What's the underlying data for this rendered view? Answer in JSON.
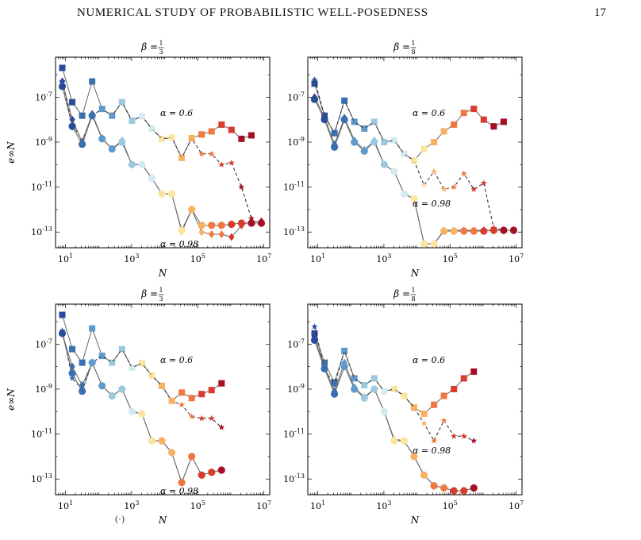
{
  "page": {
    "running_title": "NUMERICAL STUDY OF PROBABILISTIC WELL-POSEDNESS",
    "page_number": "17",
    "caption_fragment": "(·)"
  },
  "colors": {
    "alpha_gradient": [
      "#2b4b9b",
      "#3a6fb0",
      "#5e9bcc",
      "#9cc9e0",
      "#d4eaf0",
      "#fbe3a0",
      "#f8b160",
      "#ef7841",
      "#d73c2c",
      "#a50f26"
    ],
    "line_solid": "#666666",
    "line_dashed": "#222222"
  },
  "chart_data": [
    {
      "type": "line",
      "title": "β = 1/3",
      "title_main": "β = ",
      "title_num": "1",
      "title_den": "3",
      "xlabel": "N",
      "ylabel": "e∞N",
      "x_scale": "log",
      "y_scale": "log",
      "xlim": [
        5,
        15000000
      ],
      "ylim": [
        2e-14,
        6e-06
      ],
      "xticks": [
        "10^1",
        "10^3",
        "10^5",
        "10^7"
      ],
      "yticks": [
        "10^-7",
        "10^-9",
        "10^-11",
        "10^-13"
      ],
      "annotations": [
        "α = 0.6",
        "α = 0.98"
      ],
      "series": [
        {
          "style": "solid",
          "marker": "square",
          "x": [
            8,
            16,
            32,
            64,
            128,
            256,
            512,
            1024,
            2048,
            4096,
            8192,
            16384,
            32768,
            65536,
            131072,
            262144,
            524288,
            1048576,
            2097152,
            4194304
          ],
          "y": [
            2e-06,
            6e-08,
            1.5e-08,
            5e-07,
            3e-08,
            1.5e-08,
            6e-08,
            9e-09,
            1.4e-08,
            4e-09,
            1.4e-09,
            1.6e-09,
            2e-10,
            1.5e-09,
            2.2e-09,
            3e-09,
            6e-09,
            3.5e-09,
            1.4e-09,
            2e-09
          ]
        },
        {
          "style": "dashed",
          "marker": "star",
          "x": [
            8,
            16,
            32,
            64,
            128,
            256,
            512,
            1024,
            2048,
            4096,
            8192,
            16384,
            32768,
            65536,
            131072,
            262144,
            524288,
            1048576,
            2097152,
            4194304
          ],
          "y": [
            5e-07,
            6e-09,
            1.2e-09,
            1.5e-08,
            3e-08,
            1.5e-08,
            6e-08,
            9e-09,
            1.4e-08,
            4e-09,
            1.4e-09,
            1.6e-09,
            2e-10,
            1.5e-09,
            3e-10,
            3e-10,
            1e-10,
            1.2e-10,
            1e-11,
            4e-13
          ]
        },
        {
          "style": "solid",
          "marker": "diamond",
          "x": [
            8,
            16,
            32,
            64,
            128,
            256,
            512,
            1024,
            2048,
            4096,
            8192,
            16384,
            32768,
            65536,
            131072,
            262144,
            524288,
            1048576,
            2097152,
            4194304,
            8388608
          ],
          "y": [
            5e-07,
            1e-08,
            1e-09,
            1.8e-08,
            1.5e-09,
            5e-10,
            1.2e-09,
            1e-10,
            1e-10,
            2.5e-11,
            5e-12,
            5e-12,
            1e-13,
            1e-12,
            1e-13,
            8e-14,
            8e-14,
            6e-14,
            2e-13,
            3e-13,
            3e-13
          ]
        },
        {
          "style": "solid",
          "marker": "circle",
          "x": [
            8,
            16,
            32,
            64,
            128,
            256,
            512,
            1024,
            2048,
            4096,
            8192,
            16384,
            32768,
            65536,
            131072,
            262144,
            524288,
            1048576,
            2097152,
            4194304,
            8388608
          ],
          "y": [
            3e-07,
            5e-09,
            8e-10,
            1.5e-08,
            1.4e-09,
            5e-10,
            1e-09,
            1e-10,
            1e-10,
            2.5e-11,
            5e-12,
            5e-12,
            1.2e-13,
            1e-12,
            2e-13,
            2e-13,
            2e-13,
            2.2e-13,
            2.5e-13,
            2.5e-13,
            2.5e-13
          ]
        }
      ]
    },
    {
      "type": "line",
      "title": "β = 1/8",
      "title_main": "β = ",
      "title_num": "1",
      "title_den": "8",
      "xlabel": "N",
      "ylabel": "",
      "x_scale": "log",
      "y_scale": "log",
      "xlim": [
        5,
        15000000
      ],
      "ylim": [
        2e-14,
        6e-06
      ],
      "xticks": [
        "10^1",
        "10^3",
        "10^5",
        "10^7"
      ],
      "yticks": [
        "10^-7",
        "10^-9",
        "10^-11",
        "10^-13"
      ],
      "annotations": [
        "α = 0.6",
        "α = 0.98"
      ],
      "series": [
        {
          "style": "solid",
          "marker": "square",
          "x": [
            8,
            16,
            32,
            64,
            128,
            256,
            512,
            1024,
            2048,
            4096,
            8192,
            16384,
            32768,
            65536,
            131072,
            262144,
            524288,
            1048576,
            2097152,
            4194304
          ],
          "y": [
            4e-07,
            1.5e-08,
            2.5e-09,
            7e-08,
            8e-09,
            4e-09,
            8e-09,
            1e-09,
            1.2e-09,
            3e-10,
            1.5e-10,
            5e-10,
            1e-09,
            3e-09,
            6e-09,
            2e-08,
            3e-08,
            1e-08,
            5e-09,
            8e-09
          ]
        },
        {
          "style": "dashed",
          "marker": "star",
          "x": [
            8,
            16,
            32,
            64,
            128,
            256,
            512,
            1024,
            2048,
            4096,
            8192,
            16384,
            32768,
            65536,
            131072,
            262144,
            524288,
            1048576,
            2097152,
            4194304
          ],
          "y": [
            6e-07,
            1.5e-08,
            2.5e-09,
            7e-08,
            8e-09,
            4e-09,
            8e-09,
            1e-09,
            1.2e-09,
            3e-10,
            1.5e-10,
            1.2e-11,
            5e-11,
            8e-12,
            1e-11,
            4e-11,
            8e-12,
            1.5e-11,
            1.5e-13,
            1.2e-13
          ]
        },
        {
          "style": "solid",
          "marker": "diamond",
          "x": [
            8,
            16,
            32,
            64,
            128,
            256,
            512,
            1024,
            2048,
            4096,
            8192,
            16384,
            32768,
            65536,
            131072,
            262144,
            524288,
            1048576,
            2097152,
            4194304,
            8388608
          ],
          "y": [
            1e-07,
            1.3e-08,
            8e-10,
            1.2e-08,
            1.2e-09,
            4.5e-10,
            1.2e-09,
            1e-10,
            5e-11,
            5e-12,
            3e-12,
            3e-14,
            3e-14,
            1.2e-13,
            1.2e-13,
            1.2e-13,
            1.2e-13,
            1.2e-13,
            1.2e-13,
            1.2e-13,
            1.2e-13
          ]
        },
        {
          "style": "solid",
          "marker": "circle",
          "x": [
            8,
            16,
            32,
            64,
            128,
            256,
            512,
            1024,
            2048,
            4096,
            8192,
            16384,
            32768,
            65536,
            131072,
            262144,
            524288,
            1048576,
            2097152,
            4194304,
            8388608
          ],
          "y": [
            8e-08,
            1e-08,
            6e-10,
            1e-08,
            1e-09,
            4e-10,
            1e-09,
            1e-10,
            5e-11,
            5e-12,
            3e-12,
            3e-14,
            3e-14,
            1.1e-13,
            1.1e-13,
            1.1e-13,
            1.1e-13,
            1.1e-13,
            1.2e-13,
            1.2e-13,
            1.2e-13
          ]
        }
      ]
    },
    {
      "type": "line",
      "title": "β = 1/3",
      "title_main": "β = ",
      "title_num": "1",
      "title_den": "3",
      "xlabel": "N",
      "ylabel": "e∞N",
      "x_scale": "log",
      "y_scale": "log",
      "xlim": [
        5,
        15000000
      ],
      "ylim": [
        2e-14,
        6e-06
      ],
      "xticks": [
        "10^1",
        "10^3",
        "10^5",
        "10^7"
      ],
      "yticks": [
        "10^-7",
        "10^-9",
        "10^-11",
        "10^-13"
      ],
      "annotations": [
        "α = 0.6",
        "α = 0.98"
      ],
      "series": [
        {
          "style": "solid",
          "marker": "square",
          "x": [
            8,
            16,
            32,
            64,
            128,
            256,
            512,
            1024,
            2048,
            4096,
            8192,
            16384,
            32768,
            65536,
            131072,
            262144,
            524288
          ],
          "y": [
            2e-06,
            6e-08,
            1.5e-08,
            5e-07,
            3e-08,
            1.5e-08,
            6e-08,
            9e-09,
            1.4e-08,
            4e-09,
            1.4e-09,
            3e-10,
            7e-10,
            4e-10,
            6e-10,
            9e-10,
            1.8e-09
          ]
        },
        {
          "style": "dashed",
          "marker": "star",
          "x": [
            8,
            16,
            32,
            64,
            128,
            256,
            512,
            1024,
            2048,
            4096,
            8192,
            16384,
            32768,
            65536,
            131072,
            262144,
            524288
          ],
          "y": [
            4e-07,
            3e-09,
            1e-09,
            1.5e-08,
            3e-08,
            1.5e-08,
            6e-08,
            9e-09,
            1.4e-08,
            4e-09,
            1.4e-09,
            3e-10,
            2e-10,
            6e-11,
            5e-11,
            5e-11,
            2e-11
          ]
        },
        {
          "style": "solid",
          "marker": "diamond",
          "x": [
            8,
            16,
            32,
            64,
            128,
            256,
            512,
            1024,
            2048,
            4096,
            8192,
            16384,
            32768,
            65536,
            131072,
            262144,
            524288
          ],
          "y": [
            3e-07,
            1e-08,
            1.5e-09,
            1.5e-08,
            1.4e-09,
            5e-10,
            1e-09,
            1e-10,
            8e-11,
            5e-12,
            5e-12,
            1.5e-12,
            7e-14,
            1e-12,
            1.5e-13,
            2e-13,
            2.5e-13
          ]
        },
        {
          "style": "solid",
          "marker": "circle",
          "x": [
            8,
            16,
            32,
            64,
            128,
            256,
            512,
            1024,
            2048,
            4096,
            8192,
            16384,
            32768,
            65536,
            131072,
            262144,
            524288
          ],
          "y": [
            3e-07,
            5e-09,
            8e-10,
            1.5e-08,
            1.4e-09,
            5e-10,
            1e-09,
            1e-10,
            8e-11,
            5e-12,
            5e-12,
            1.5e-12,
            7e-14,
            1e-12,
            1.5e-13,
            2e-13,
            2.5e-13
          ]
        }
      ]
    },
    {
      "type": "line",
      "title": "β = 1/8",
      "title_main": "β = ",
      "title_num": "1",
      "title_den": "8",
      "xlabel": "N",
      "ylabel": "",
      "x_scale": "log",
      "y_scale": "log",
      "xlim": [
        5,
        15000000
      ],
      "ylim": [
        2e-14,
        6e-06
      ],
      "xticks": [
        "10^1",
        "10^3",
        "10^5",
        "10^7"
      ],
      "yticks": [
        "10^-7",
        "10^-9",
        "10^-11",
        "10^-13"
      ],
      "annotations": [
        "α = 0.6",
        "α = 0.98"
      ],
      "series": [
        {
          "style": "solid",
          "marker": "square",
          "x": [
            8,
            16,
            32,
            64,
            128,
            256,
            512,
            1024,
            2048,
            4096,
            8192,
            16384,
            32768,
            65536,
            131072,
            262144,
            524288
          ],
          "y": [
            3e-07,
            1.5e-08,
            2e-09,
            5e-08,
            3e-09,
            1.5e-09,
            3e-09,
            8e-10,
            1e-09,
            5e-10,
            1.5e-10,
            8e-11,
            2e-10,
            5e-10,
            1e-09,
            3e-09,
            6e-09
          ]
        },
        {
          "style": "dashed",
          "marker": "star",
          "x": [
            8,
            16,
            32,
            64,
            128,
            256,
            512,
            1024,
            2048,
            4096,
            8192,
            16384,
            32768,
            65536,
            131072,
            262144,
            524288
          ],
          "y": [
            6e-07,
            8e-09,
            1.5e-09,
            5e-08,
            3e-09,
            1.5e-09,
            3e-09,
            8e-10,
            1e-09,
            5e-10,
            1.5e-10,
            3e-11,
            5e-12,
            4e-11,
            8e-12,
            8e-12,
            5e-12
          ]
        },
        {
          "style": "solid",
          "marker": "diamond",
          "x": [
            8,
            16,
            32,
            64,
            128,
            256,
            512,
            1024,
            2048,
            4096,
            8192,
            16384,
            32768,
            65536,
            131072,
            262144,
            524288
          ],
          "y": [
            2e-07,
            1e-08,
            8e-10,
            1.5e-08,
            1.2e-09,
            4.5e-10,
            1e-09,
            1e-10,
            6e-12,
            5e-12,
            1e-12,
            1.5e-13,
            5e-14,
            4e-14,
            3e-14,
            3e-14,
            4e-14
          ]
        },
        {
          "style": "solid",
          "marker": "circle",
          "x": [
            8,
            16,
            32,
            64,
            128,
            256,
            512,
            1024,
            2048,
            4096,
            8192,
            16384,
            32768,
            65536,
            131072,
            262144,
            524288
          ],
          "y": [
            1.5e-07,
            8e-09,
            6e-10,
            1e-08,
            1e-09,
            4e-10,
            1e-09,
            1e-10,
            5e-12,
            5e-12,
            1e-12,
            1.5e-13,
            5e-14,
            4e-14,
            3e-14,
            3e-14,
            4e-14
          ]
        }
      ]
    }
  ]
}
